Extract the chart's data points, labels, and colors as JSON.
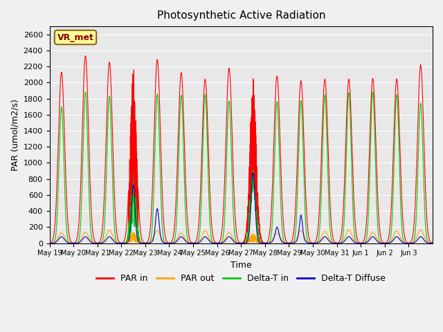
{
  "title": "Photosynthetic Active Radiation",
  "ylabel": "PAR (umol/m2/s)",
  "xlabel": "Time",
  "station_label": "VR_met",
  "ylim": [
    0,
    2700
  ],
  "yticks": [
    0,
    200,
    400,
    600,
    800,
    1000,
    1200,
    1400,
    1600,
    1800,
    2000,
    2200,
    2400,
    2600
  ],
  "xtick_labels": [
    "May 19",
    "May 20",
    "May 21",
    "May 22",
    "May 23",
    "May 24",
    "May 25",
    "May 26",
    "May 27",
    "May 28",
    "May 29",
    "May 30",
    "May 31",
    "Jun 1",
    "Jun 2",
    "Jun 3"
  ],
  "colors": {
    "PAR_in": "#FF0000",
    "PAR_out": "#FFA500",
    "Delta_T_in": "#00CC00",
    "Delta_T_diffuse": "#0000CC",
    "background": "#E8E8E8",
    "grid": "#FFFFFF"
  },
  "legend": [
    "PAR in",
    "PAR out",
    "Delta-T in",
    "Delta-T Diffuse"
  ],
  "n_days": 16,
  "points_per_day": 288,
  "par_in_peak": 2350,
  "par_out_peak": 170,
  "delta_t_peak": 1860,
  "delta_t_diffuse_peak": 800
}
